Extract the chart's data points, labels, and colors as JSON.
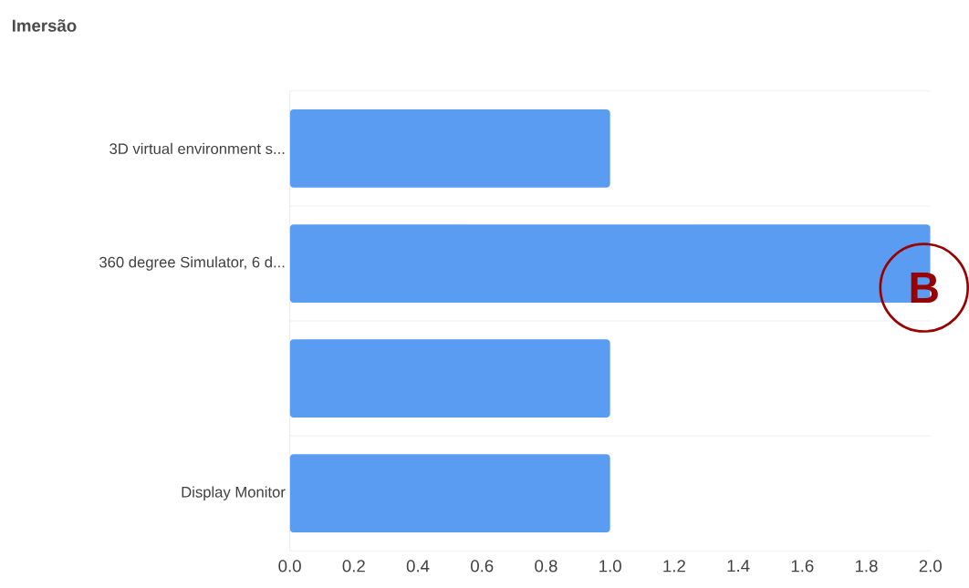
{
  "chart_data": {
    "type": "bar",
    "orientation": "horizontal",
    "title": "Imersão",
    "categories": [
      "3D virtual environment s...",
      "360 degree Simulator, 6 d...",
      null,
      "Display Monitor"
    ],
    "values": [
      1,
      2,
      1,
      1
    ],
    "color": "#5b9cf3",
    "xlim": [
      0,
      2
    ],
    "xticks": [
      {
        "value": 0,
        "label": "0.0"
      },
      {
        "value": 0.2,
        "label": "0.2"
      },
      {
        "value": 0.4,
        "label": "0.4"
      },
      {
        "value": 0.6,
        "label": "0.6"
      },
      {
        "value": 0.8,
        "label": "0.8"
      },
      {
        "value": 1,
        "label": "1.0"
      },
      {
        "value": 1.2,
        "label": "1.2"
      },
      {
        "value": 1.4,
        "label": "1.4"
      },
      {
        "value": 1.6,
        "label": "1.6"
      },
      {
        "value": 1.8,
        "label": "1.8"
      },
      {
        "value": 2,
        "label": "2.0"
      }
    ],
    "grid": "y",
    "annotations": [
      "B"
    ]
  }
}
